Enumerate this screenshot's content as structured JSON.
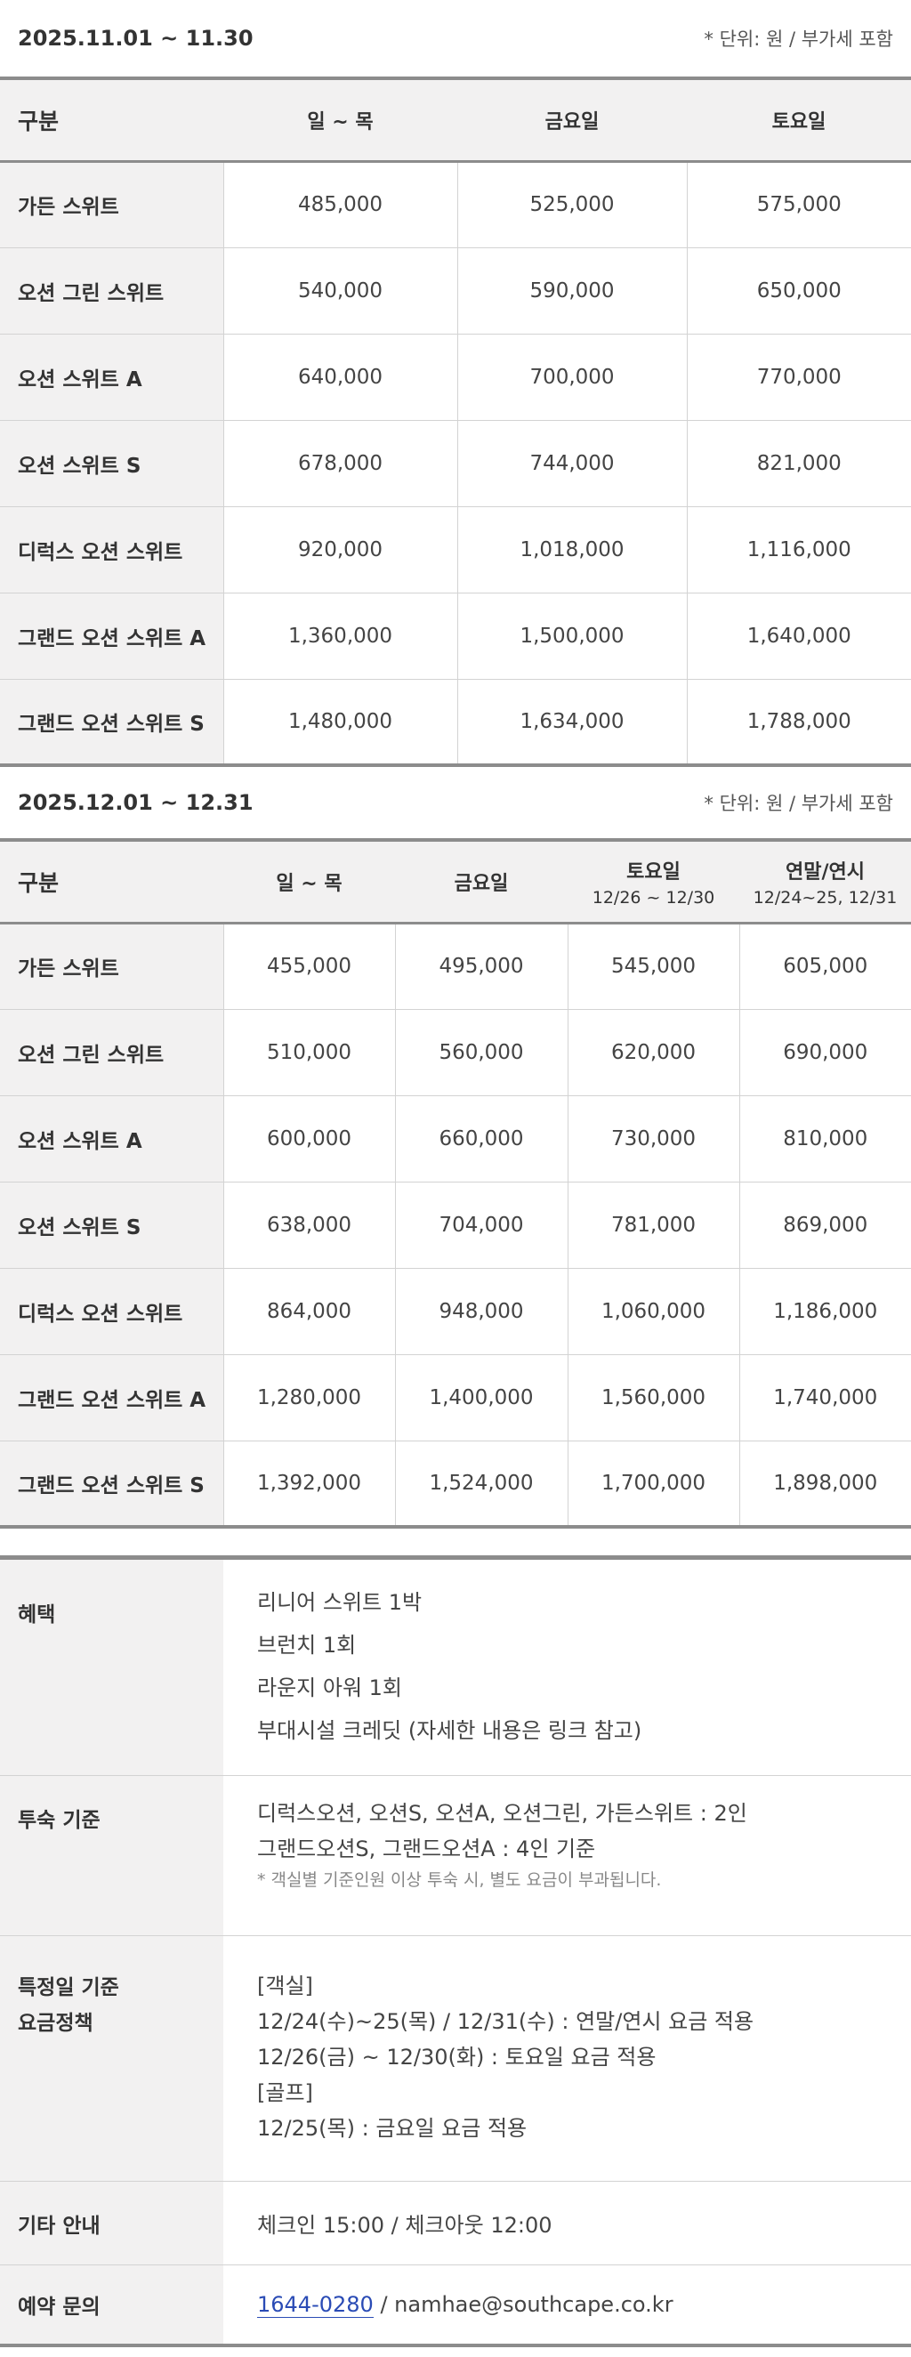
{
  "november": {
    "period": "2025.11.01 ~ 11.30",
    "unit_note": "* 단위: 원 / 부가세 포함",
    "headers": [
      "구분",
      "일 ~ 목",
      "금요일",
      "토요일"
    ],
    "rows": [
      {
        "room": "가든 스위트",
        "prices": [
          "485,000",
          "525,000",
          "575,000"
        ]
      },
      {
        "room": "오션 그린 스위트",
        "prices": [
          "540,000",
          "590,000",
          "650,000"
        ]
      },
      {
        "room": "오션 스위트 A",
        "prices": [
          "640,000",
          "700,000",
          "770,000"
        ]
      },
      {
        "room": "오션 스위트 S",
        "prices": [
          "678,000",
          "744,000",
          "821,000"
        ]
      },
      {
        "room": "디럭스 오션 스위트",
        "prices": [
          "920,000",
          "1,018,000",
          "1,116,000"
        ]
      },
      {
        "room": "그랜드 오션 스위트 A",
        "prices": [
          "1,360,000",
          "1,500,000",
          "1,640,000"
        ]
      },
      {
        "room": "그랜드 오션 스위트 S",
        "prices": [
          "1,480,000",
          "1,634,000",
          "1,788,000"
        ]
      }
    ]
  },
  "december": {
    "period": "2025.12.01 ~ 12.31",
    "unit_note": "* 단위: 원 / 부가세 포함",
    "headers": [
      {
        "main": "구분",
        "sub": ""
      },
      {
        "main": "일 ~ 목",
        "sub": ""
      },
      {
        "main": "금요일",
        "sub": ""
      },
      {
        "main": "토요일",
        "sub": "12/26 ~ 12/30"
      },
      {
        "main": "연말/연시",
        "sub": "12/24~25, 12/31"
      }
    ],
    "rows": [
      {
        "room": "가든 스위트",
        "prices": [
          "455,000",
          "495,000",
          "545,000",
          "605,000"
        ]
      },
      {
        "room": "오션 그린 스위트",
        "prices": [
          "510,000",
          "560,000",
          "620,000",
          "690,000"
        ]
      },
      {
        "room": "오션 스위트 A",
        "prices": [
          "600,000",
          "660,000",
          "730,000",
          "810,000"
        ]
      },
      {
        "room": "오션 스위트 S",
        "prices": [
          "638,000",
          "704,000",
          "781,000",
          "869,000"
        ]
      },
      {
        "room": "디럭스 오션 스위트",
        "prices": [
          "864,000",
          "948,000",
          "1,060,000",
          "1,186,000"
        ]
      },
      {
        "room": "그랜드 오션 스위트 A",
        "prices": [
          "1,280,000",
          "1,400,000",
          "1,560,000",
          "1,740,000"
        ]
      },
      {
        "room": "그랜드 오션 스위트 S",
        "prices": [
          "1,392,000",
          "1,524,000",
          "1,700,000",
          "1,898,000"
        ]
      }
    ]
  },
  "info": {
    "benefits": {
      "label": "혜택",
      "lines": [
        "리니어 스위트 1박",
        "브런치 1회",
        "라운지 아워 1회",
        "부대시설 크레딧 (자세한 내용은 링크 참고)"
      ]
    },
    "occupancy": {
      "label": "투숙 기준",
      "lines": [
        "디럭스오션, 오션S, 오션A, 오션그린, 가든스위트 : 2인",
        "그랜드오션S, 그랜드오션A : 4인 기준"
      ],
      "note": "* 객실별 기준인원 이상 투숙 시, 별도 요금이 부과됩니다."
    },
    "special": {
      "label_line1": "특정일 기준",
      "label_line2": "요금정책",
      "lines": [
        "[객실]",
        "12/24(수)~25(목) / 12/31(수) : 연말/연시 요금 적용",
        "12/26(금) ~ 12/30(화) : 토요일 요금 적용",
        "[골프]",
        "12/25(목) : 금요일 요금 적용"
      ]
    },
    "other": {
      "label": "기타 안내",
      "text": "체크인 15:00 / 체크아웃 12:00"
    },
    "contact": {
      "label": "예약 문의",
      "phone": "1644-0280",
      "separator": " / ",
      "email": "namhae@southcape.co.kr"
    }
  },
  "colors": {
    "header_bg": "#f2f1f1",
    "border_dark": "#8c8c8c",
    "border_light": "#d3d3d3",
    "link": "#2a4bb5"
  }
}
